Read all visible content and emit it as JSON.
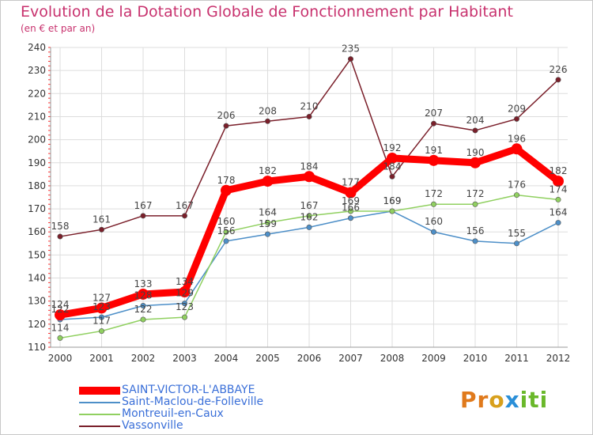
{
  "chart_data": {
    "type": "line",
    "title": "Evolution de la Dotation Globale de Fonctionnement par Habitant",
    "subtitle": "(en € et par an)",
    "x": [
      "2000",
      "2001",
      "2002",
      "2003",
      "2004",
      "2005",
      "2006",
      "2007",
      "2008",
      "2009",
      "2010",
      "2011",
      "2012"
    ],
    "ylim": [
      110,
      240
    ],
    "yticks": [
      "110",
      "120",
      "130",
      "140",
      "150",
      "160",
      "170",
      "180",
      "190",
      "200",
      "210",
      "220",
      "230",
      "240"
    ],
    "grid": true,
    "series": [
      {
        "name": "Vassonville",
        "color": "#7a1f2a",
        "values": [
          158,
          161,
          167,
          167,
          206,
          208,
          210,
          235,
          184,
          207,
          204,
          209,
          226
        ]
      },
      {
        "name": "Saint-Maclou-de-Folleville",
        "color": "#4d8fc8",
        "values": [
          122,
          123,
          128,
          129,
          156,
          159,
          162,
          166,
          169,
          160,
          156,
          155,
          164
        ]
      },
      {
        "name": "Montreuil-en-Caux",
        "color": "#90d060",
        "values": [
          114,
          117,
          122,
          123,
          160,
          164,
          167,
          169,
          169,
          172,
          172,
          176,
          174
        ]
      },
      {
        "name": "SAINT-VICTOR-L'ABBAYE",
        "color": "#ff0000",
        "values": [
          124,
          127,
          133,
          134,
          178,
          182,
          184,
          177,
          192,
          191,
          190,
          196,
          182
        ]
      }
    ]
  },
  "legend": {
    "items": [
      {
        "label": "SAINT-VICTOR-L'ABBAYE",
        "color": "#ff0000"
      },
      {
        "label": "Saint-Maclou-de-Folleville",
        "color": "#4d8fc8"
      },
      {
        "label": "Montreuil-en-Caux",
        "color": "#90d060"
      },
      {
        "label": "Vassonville",
        "color": "#7a1f2a"
      }
    ]
  },
  "logo": {
    "part1": "Pr",
    "part2": "o",
    "part3": "x",
    "part4": "iti"
  }
}
